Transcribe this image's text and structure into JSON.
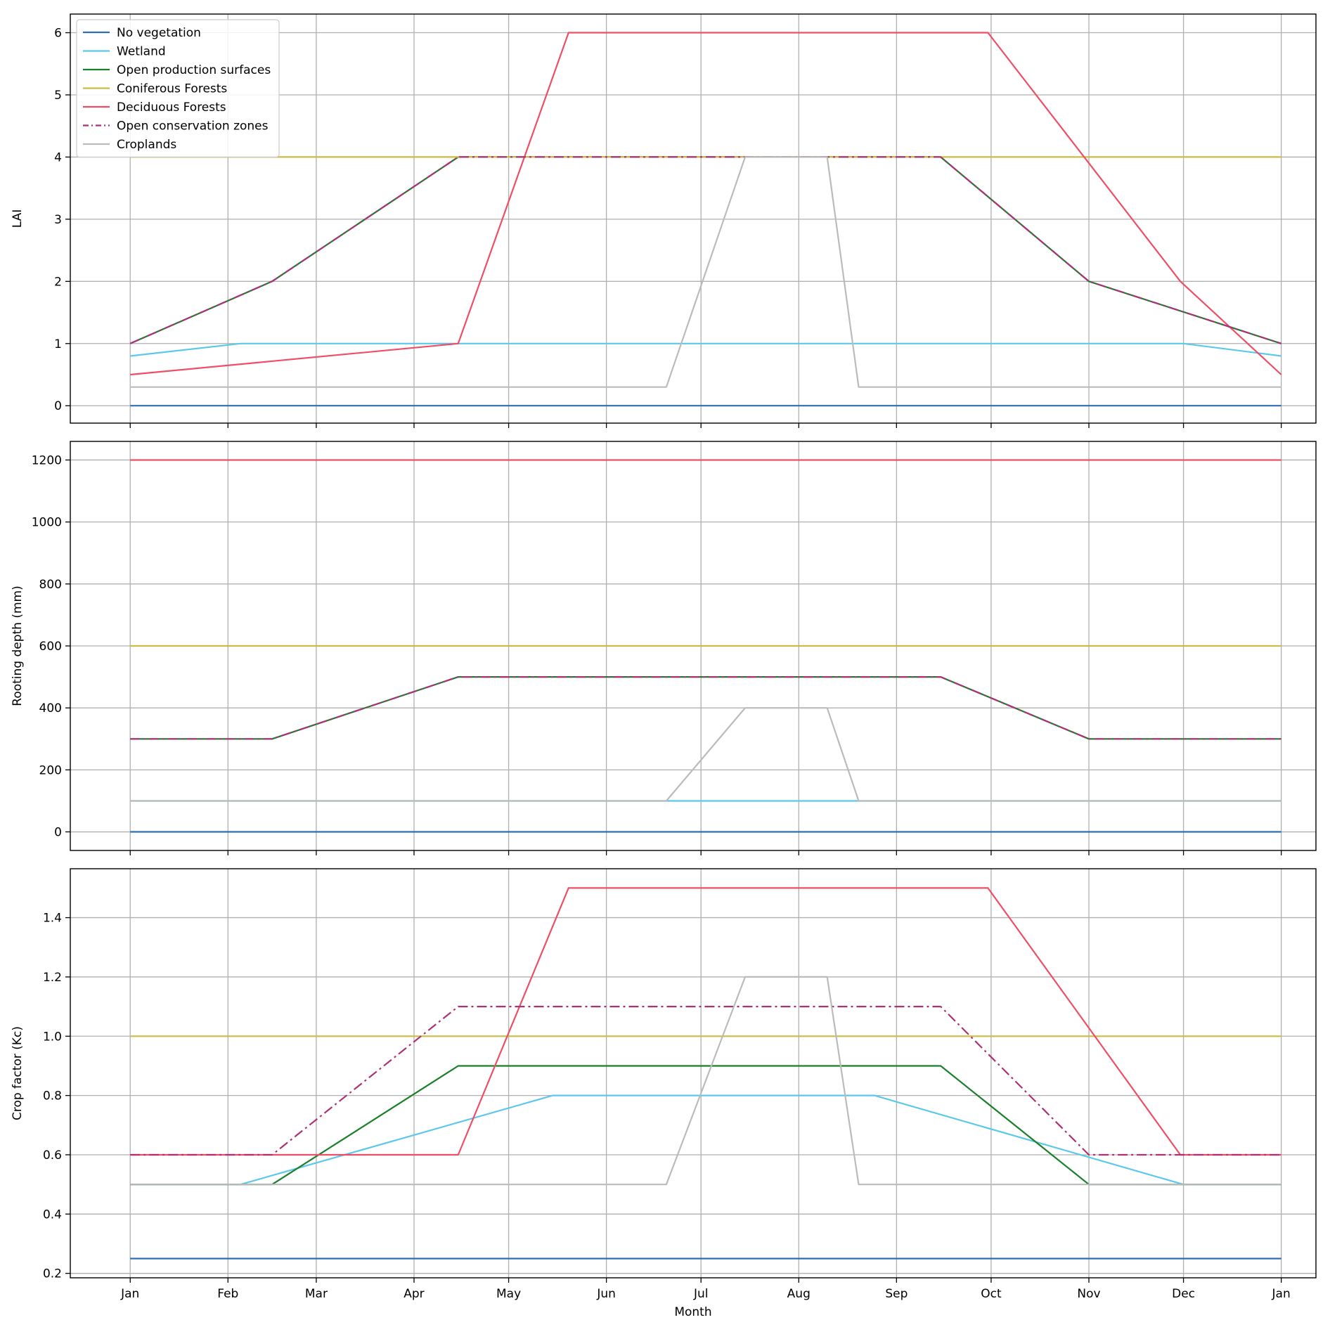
{
  "chart_data": [
    {
      "type": "line",
      "ylabel": "LAI",
      "ylim": [
        -0.28,
        6.3
      ],
      "yticks": [
        0,
        1,
        2,
        3,
        4,
        5,
        6
      ],
      "grid": true,
      "legend_position": "upper-left",
      "series": [
        {
          "name": "No vegetation",
          "color": "#2f6db5",
          "dash": "solid",
          "x": [
            "2021-01-01",
            "2022-01-01"
          ],
          "y": [
            0,
            0
          ]
        },
        {
          "name": "Wetland",
          "color": "#5cc8ea",
          "dash": "solid",
          "x": [
            "2021-01-01",
            "2021-02-05",
            "2021-12-01",
            "2022-01-01"
          ],
          "y": [
            0.8,
            1,
            1,
            0.8
          ]
        },
        {
          "name": "Open production surfaces",
          "color": "#1a7f2a",
          "dash": "solid",
          "x": [
            "2021-01-01",
            "2021-02-15",
            "2021-04-15",
            "2021-09-15",
            "2021-11-01",
            "2022-01-01"
          ],
          "y": [
            1,
            2,
            4,
            4,
            2,
            1
          ]
        },
        {
          "name": "Coniferous Forests",
          "color": "#ccbb44",
          "dash": "solid",
          "x": [
            "2021-01-01",
            "2022-01-01"
          ],
          "y": [
            4,
            4
          ]
        },
        {
          "name": "Deciduous Forests",
          "color": "#ee4f66",
          "dash": "solid",
          "x": [
            "2021-01-01",
            "2021-04-15",
            "2021-05-20",
            "2021-09-30",
            "2021-11-30",
            "2022-01-01"
          ],
          "y": [
            0.5,
            1,
            6,
            6,
            2,
            0.5
          ]
        },
        {
          "name": "Open conservation zones",
          "color": "#aa3377",
          "dash": "dashdot",
          "x": [
            "2021-01-01",
            "2021-02-15",
            "2021-04-15",
            "2021-09-15",
            "2021-11-01",
            "2022-01-01"
          ],
          "y": [
            1,
            2,
            4,
            4,
            2,
            1
          ]
        },
        {
          "name": "Croplands",
          "color": "#bbbbbb",
          "dash": "solid",
          "x": [
            "2021-01-01",
            "2021-06-20",
            "2021-07-15",
            "2021-08-10",
            "2021-08-20",
            "2022-01-01"
          ],
          "y": [
            0.3,
            0.3,
            4,
            4,
            0.3,
            0.3
          ]
        }
      ]
    },
    {
      "type": "line",
      "ylabel": "Rooting depth (mm)",
      "ylim": [
        -60,
        1260
      ],
      "yticks": [
        0,
        200,
        400,
        600,
        800,
        1000,
        1200
      ],
      "grid": true,
      "series": [
        {
          "name": "No vegetation",
          "color": "#2f6db5",
          "dash": "solid",
          "x": [
            "2021-01-01",
            "2022-01-01"
          ],
          "y": [
            0,
            0
          ]
        },
        {
          "name": "Wetland",
          "color": "#5cc8ea",
          "dash": "solid",
          "x": [
            "2021-01-01",
            "2022-01-01"
          ],
          "y": [
            100,
            100
          ]
        },
        {
          "name": "Open production surfaces",
          "color": "#1a7f2a",
          "dash": "solid",
          "x": [
            "2021-01-01",
            "2021-02-15",
            "2021-04-15",
            "2021-09-15",
            "2021-11-01",
            "2022-01-01"
          ],
          "y": [
            300,
            300,
            500,
            500,
            300,
            300
          ]
        },
        {
          "name": "Coniferous Forests",
          "color": "#ccbb44",
          "dash": "solid",
          "x": [
            "2021-01-01",
            "2022-01-01"
          ],
          "y": [
            600,
            600
          ]
        },
        {
          "name": "Deciduous Forests",
          "color": "#ee4f66",
          "dash": "solid",
          "x": [
            "2021-01-01",
            "2022-01-01"
          ],
          "y": [
            1200,
            1200
          ]
        },
        {
          "name": "Open conservation zones",
          "color": "#aa3377",
          "dash": "dashdot",
          "x": [
            "2021-01-01",
            "2021-02-15",
            "2021-04-15",
            "2021-09-15",
            "2021-11-01",
            "2022-01-01"
          ],
          "y": [
            300,
            300,
            500,
            500,
            300,
            300
          ]
        },
        {
          "name": "Croplands",
          "color": "#bbbbbb",
          "dash": "solid",
          "x": [
            "2021-01-01",
            "2021-06-20",
            "2021-07-15",
            "2021-08-10",
            "2021-08-20",
            "2022-01-01"
          ],
          "y": [
            100,
            100,
            400,
            400,
            100,
            100
          ]
        }
      ]
    },
    {
      "type": "line",
      "ylabel": "Crop factor (Kc)",
      "xlabel": "Month",
      "ylim": [
        0.185,
        1.565
      ],
      "yticks": [
        0.2,
        0.4,
        0.6,
        0.8,
        1.0,
        1.2,
        1.4
      ],
      "ytick_labels": [
        "0.2",
        "0.4",
        "0.6",
        "0.8",
        "1.0",
        "1.2",
        "1.4"
      ],
      "grid": true,
      "series": [
        {
          "name": "No vegetation",
          "color": "#2f6db5",
          "dash": "solid",
          "x": [
            "2021-01-01",
            "2022-01-01"
          ],
          "y": [
            0.25,
            0.25
          ]
        },
        {
          "name": "Wetland",
          "color": "#5cc8ea",
          "dash": "solid",
          "x": [
            "2021-01-01",
            "2021-02-05",
            "2021-05-15",
            "2021-08-25",
            "2021-12-01",
            "2022-01-01"
          ],
          "y": [
            0.5,
            0.5,
            0.8,
            0.8,
            0.5,
            0.5
          ]
        },
        {
          "name": "Open production surfaces",
          "color": "#1a7f2a",
          "dash": "solid",
          "x": [
            "2021-01-01",
            "2021-02-15",
            "2021-04-15",
            "2021-09-15",
            "2021-11-01",
            "2022-01-01"
          ],
          "y": [
            0.5,
            0.5,
            0.9,
            0.9,
            0.5,
            0.5
          ]
        },
        {
          "name": "Coniferous Forests",
          "color": "#ccbb44",
          "dash": "solid",
          "x": [
            "2021-01-01",
            "2022-01-01"
          ],
          "y": [
            1.0,
            1.0
          ]
        },
        {
          "name": "Deciduous Forests",
          "color": "#ee4f66",
          "dash": "solid",
          "x": [
            "2021-01-01",
            "2021-04-15",
            "2021-05-20",
            "2021-09-30",
            "2021-11-30",
            "2022-01-01"
          ],
          "y": [
            0.6,
            0.6,
            1.5,
            1.5,
            0.6,
            0.6
          ]
        },
        {
          "name": "Open conservation zones",
          "color": "#aa3377",
          "dash": "dashdot",
          "x": [
            "2021-01-01",
            "2021-02-15",
            "2021-04-15",
            "2021-09-15",
            "2021-11-01",
            "2022-01-01"
          ],
          "y": [
            0.6,
            0.6,
            1.1,
            1.1,
            0.6,
            0.6
          ]
        },
        {
          "name": "Croplands",
          "color": "#bbbbbb",
          "dash": "solid",
          "x": [
            "2021-01-01",
            "2021-06-20",
            "2021-07-15",
            "2021-08-10",
            "2021-08-20",
            "2022-01-01"
          ],
          "y": [
            0.5,
            0.5,
            1.2,
            1.2,
            0.5,
            0.5
          ]
        }
      ]
    }
  ],
  "x_axis": {
    "xlim": [
      "2020-12-13",
      "2022-01-12"
    ],
    "ticks": [
      "2021-01-01",
      "2021-02-01",
      "2021-03-01",
      "2021-04-01",
      "2021-05-01",
      "2021-06-01",
      "2021-07-01",
      "2021-08-01",
      "2021-09-01",
      "2021-10-01",
      "2021-11-01",
      "2021-12-01",
      "2022-01-01"
    ],
    "tick_labels": [
      "Jan",
      "Feb",
      "Mar",
      "Apr",
      "May",
      "Jun",
      "Jul",
      "Aug",
      "Sep",
      "Oct",
      "Nov",
      "Dec",
      "Jan"
    ]
  }
}
